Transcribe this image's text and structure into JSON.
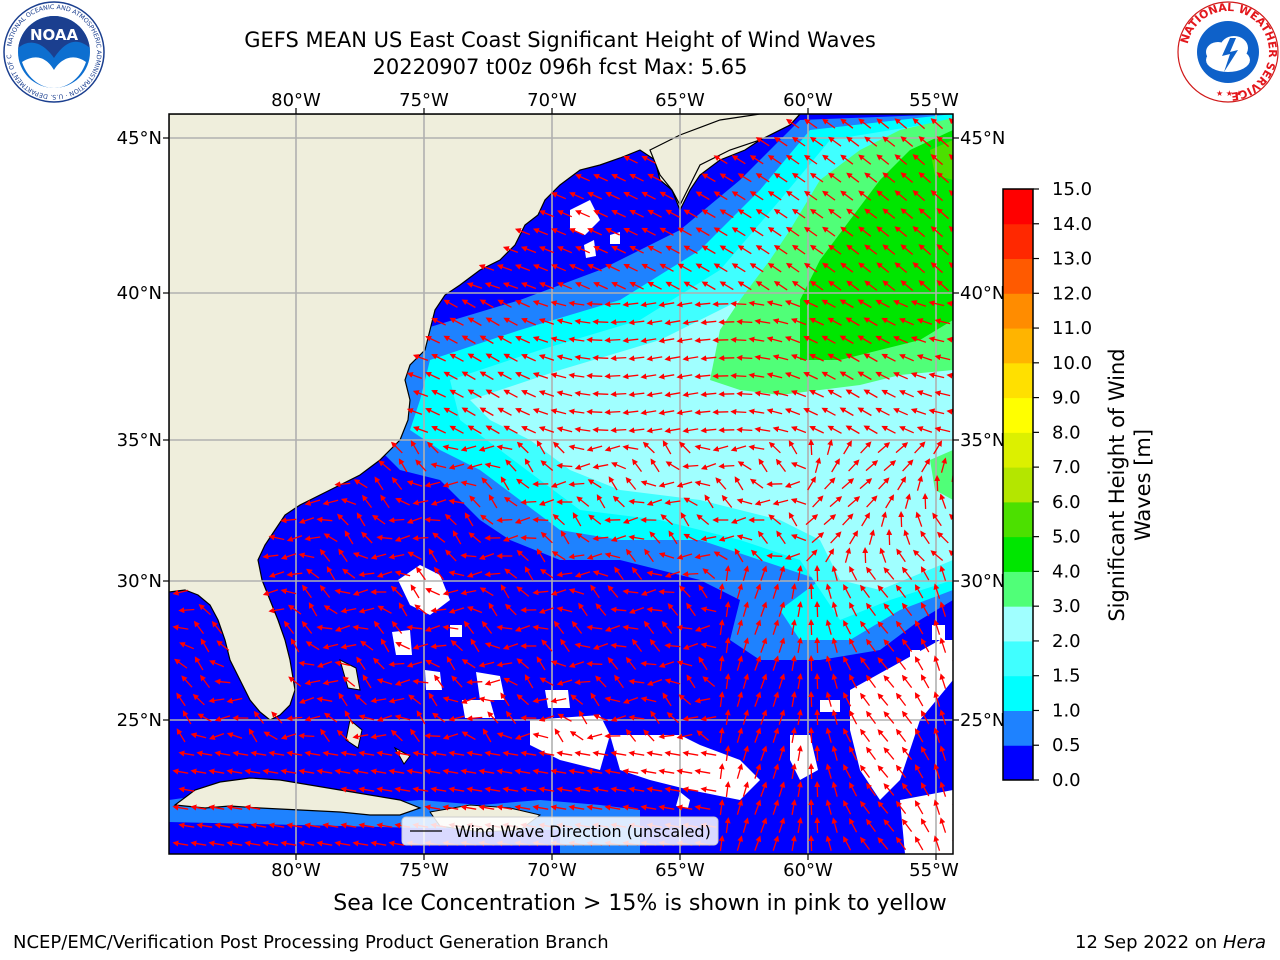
{
  "title": {
    "line1": "GEFS MEAN US East Coast Significant Height of Wind Waves",
    "line2": "20220907 t00z 096h fcst   Max: 5.65"
  },
  "map": {
    "lon_ticks": [
      "80°W",
      "75°W",
      "70°W",
      "65°W",
      "60°W",
      "55°W"
    ],
    "lat_ticks": [
      "45°N",
      "40°N",
      "35°N",
      "30°N",
      "25°N"
    ],
    "legend_label": "Wind Wave Direction (unscaled)",
    "colors": {
      "land": "#efeedc",
      "arrow": "#ff0000",
      "gridline": "#b0b0b0",
      "no_data": "#ffffff"
    }
  },
  "colorbar": {
    "label_line1": "Significant Height of Wind",
    "label_line2": "Waves [m]",
    "ticks": [
      "0.0",
      "0.5",
      "1.0",
      "1.5",
      "2.0",
      "3.0",
      "4.0",
      "5.0",
      "6.0",
      "7.0",
      "8.0",
      "9.0",
      "10.0",
      "11.0",
      "12.0",
      "13.0",
      "14.0",
      "15.0"
    ],
    "colors": [
      "#0000ff",
      "#1e82ff",
      "#00ffff",
      "#40ffff",
      "#a0ffff",
      "#50ff78",
      "#00e600",
      "#4ce000",
      "#b4e600",
      "#dcf000",
      "#ffff00",
      "#ffe000",
      "#ffb400",
      "#ff8c00",
      "#ff5a00",
      "#ff2800",
      "#ff0000"
    ]
  },
  "ice_note": "Sea Ice Concentration > 15% is shown in pink to yellow",
  "footer": {
    "left": "NCEP/EMC/Verification Post Processing Product Generation Branch",
    "right_prefix": "12 Sep 2022 on ",
    "right_host": "Hera"
  },
  "logos": {
    "noaa_text": "NOAA",
    "noaa_ring": "NATIONAL OCEANIC AND ATMOSPHERIC ADMINISTRATION · U.S. DEPARTMENT OF COMMERCE",
    "nws_ring": "NATIONAL WEATHER SERVICE"
  }
}
